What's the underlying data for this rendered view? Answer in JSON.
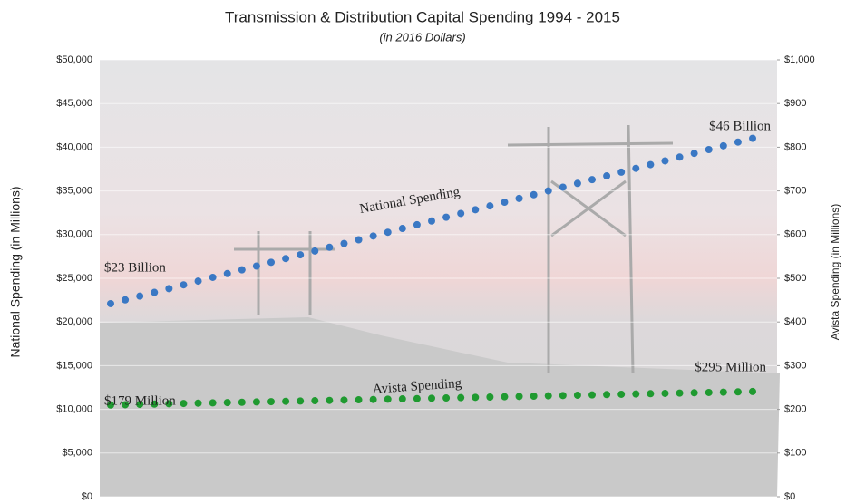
{
  "chart_data": {
    "type": "scatter",
    "title": "Transmission & Distribution Capital Spending 1994 - 2015",
    "subtitle": "(in 2016 Dollars)",
    "ylabel": "National Spending (in Millions)",
    "y2label": "Avista Spending (in Millions)",
    "categories": [
      null,
      null,
      null,
      null,
      null,
      null,
      null,
      null,
      null,
      null,
      null,
      null,
      null,
      null,
      null,
      null,
      null,
      null,
      null,
      null,
      null,
      null,
      null,
      null,
      null,
      null,
      null,
      null,
      null,
      null,
      null,
      null,
      null,
      null,
      null,
      null,
      null,
      null,
      null,
      null,
      null,
      null,
      null,
      null,
      null
    ],
    "series": [
      {
        "color": "#3a78c4",
        "values": [
          22100,
          22530,
          22960,
          23390,
          23820,
          24250,
          24680,
          25110,
          25540,
          25970,
          26400,
          26830,
          27260,
          27690,
          28120,
          28550,
          28980,
          29410,
          29840,
          30270,
          30700,
          31130,
          31560,
          31990,
          32420,
          32850,
          33280,
          33710,
          34140,
          34570,
          35000,
          35430,
          35860,
          36290,
          36720,
          37150,
          37580,
          38010,
          38440,
          38870,
          39300,
          39730,
          40160,
          40590,
          41020
        ]
      },
      {
        "color": "#1f9a30",
        "axis": "y2",
        "values": [
          210,
          210.7,
          211.4,
          212.1,
          212.8,
          213.5,
          214.2,
          214.9,
          215.6,
          216.3,
          217,
          217.7,
          218.4,
          219.1,
          219.8,
          220.5,
          221.2,
          221.9,
          222.6,
          223.3,
          224,
          224.7,
          225.4,
          226.1,
          226.8,
          227.5,
          228.2,
          228.9,
          229.6,
          230.3,
          231,
          231.7,
          232.4,
          233.1,
          233.8,
          234.5,
          235.2,
          235.9,
          236.6,
          237.3,
          238,
          238.7,
          239.4,
          240.1,
          240.8
        ]
      }
    ],
    "annotations": [
      "$23 Billion",
      "$46 Billion",
      "National Spending",
      "$179 Million",
      "$295 Million",
      "Avista Spending"
    ],
    "ylim": [
      0,
      50000
    ],
    "yticks": [
      {
        "value": 0,
        "label": "$0"
      },
      {
        "value": 5000,
        "label": "$5,000"
      },
      {
        "value": 10000,
        "label": "$10,000"
      },
      {
        "value": 15000,
        "label": "$15,000"
      },
      {
        "value": 20000,
        "label": "$20,000"
      },
      {
        "value": 25000,
        "label": "$25,000"
      },
      {
        "value": 30000,
        "label": "$30,000"
      },
      {
        "value": 35000,
        "label": "$35,000"
      },
      {
        "value": 40000,
        "label": "$40,000"
      },
      {
        "value": 45000,
        "label": "$45,000"
      },
      {
        "value": 50000,
        "label": "$50,000"
      }
    ],
    "y2lim": [
      0,
      1000
    ],
    "y2ticks": [
      {
        "value": 0,
        "label": "$0"
      },
      {
        "value": 100,
        "label": "$100"
      },
      {
        "value": 200,
        "label": "$200"
      },
      {
        "value": 300,
        "label": "$300"
      },
      {
        "value": 400,
        "label": "$400"
      },
      {
        "value": 500,
        "label": "$500"
      },
      {
        "value": 600,
        "label": "$600"
      },
      {
        "value": 700,
        "label": "$700"
      },
      {
        "value": 800,
        "label": "$800"
      },
      {
        "value": 900,
        "label": "$900"
      },
      {
        "value": 1000,
        "label": "$1,000"
      }
    ],
    "grid": true
  }
}
